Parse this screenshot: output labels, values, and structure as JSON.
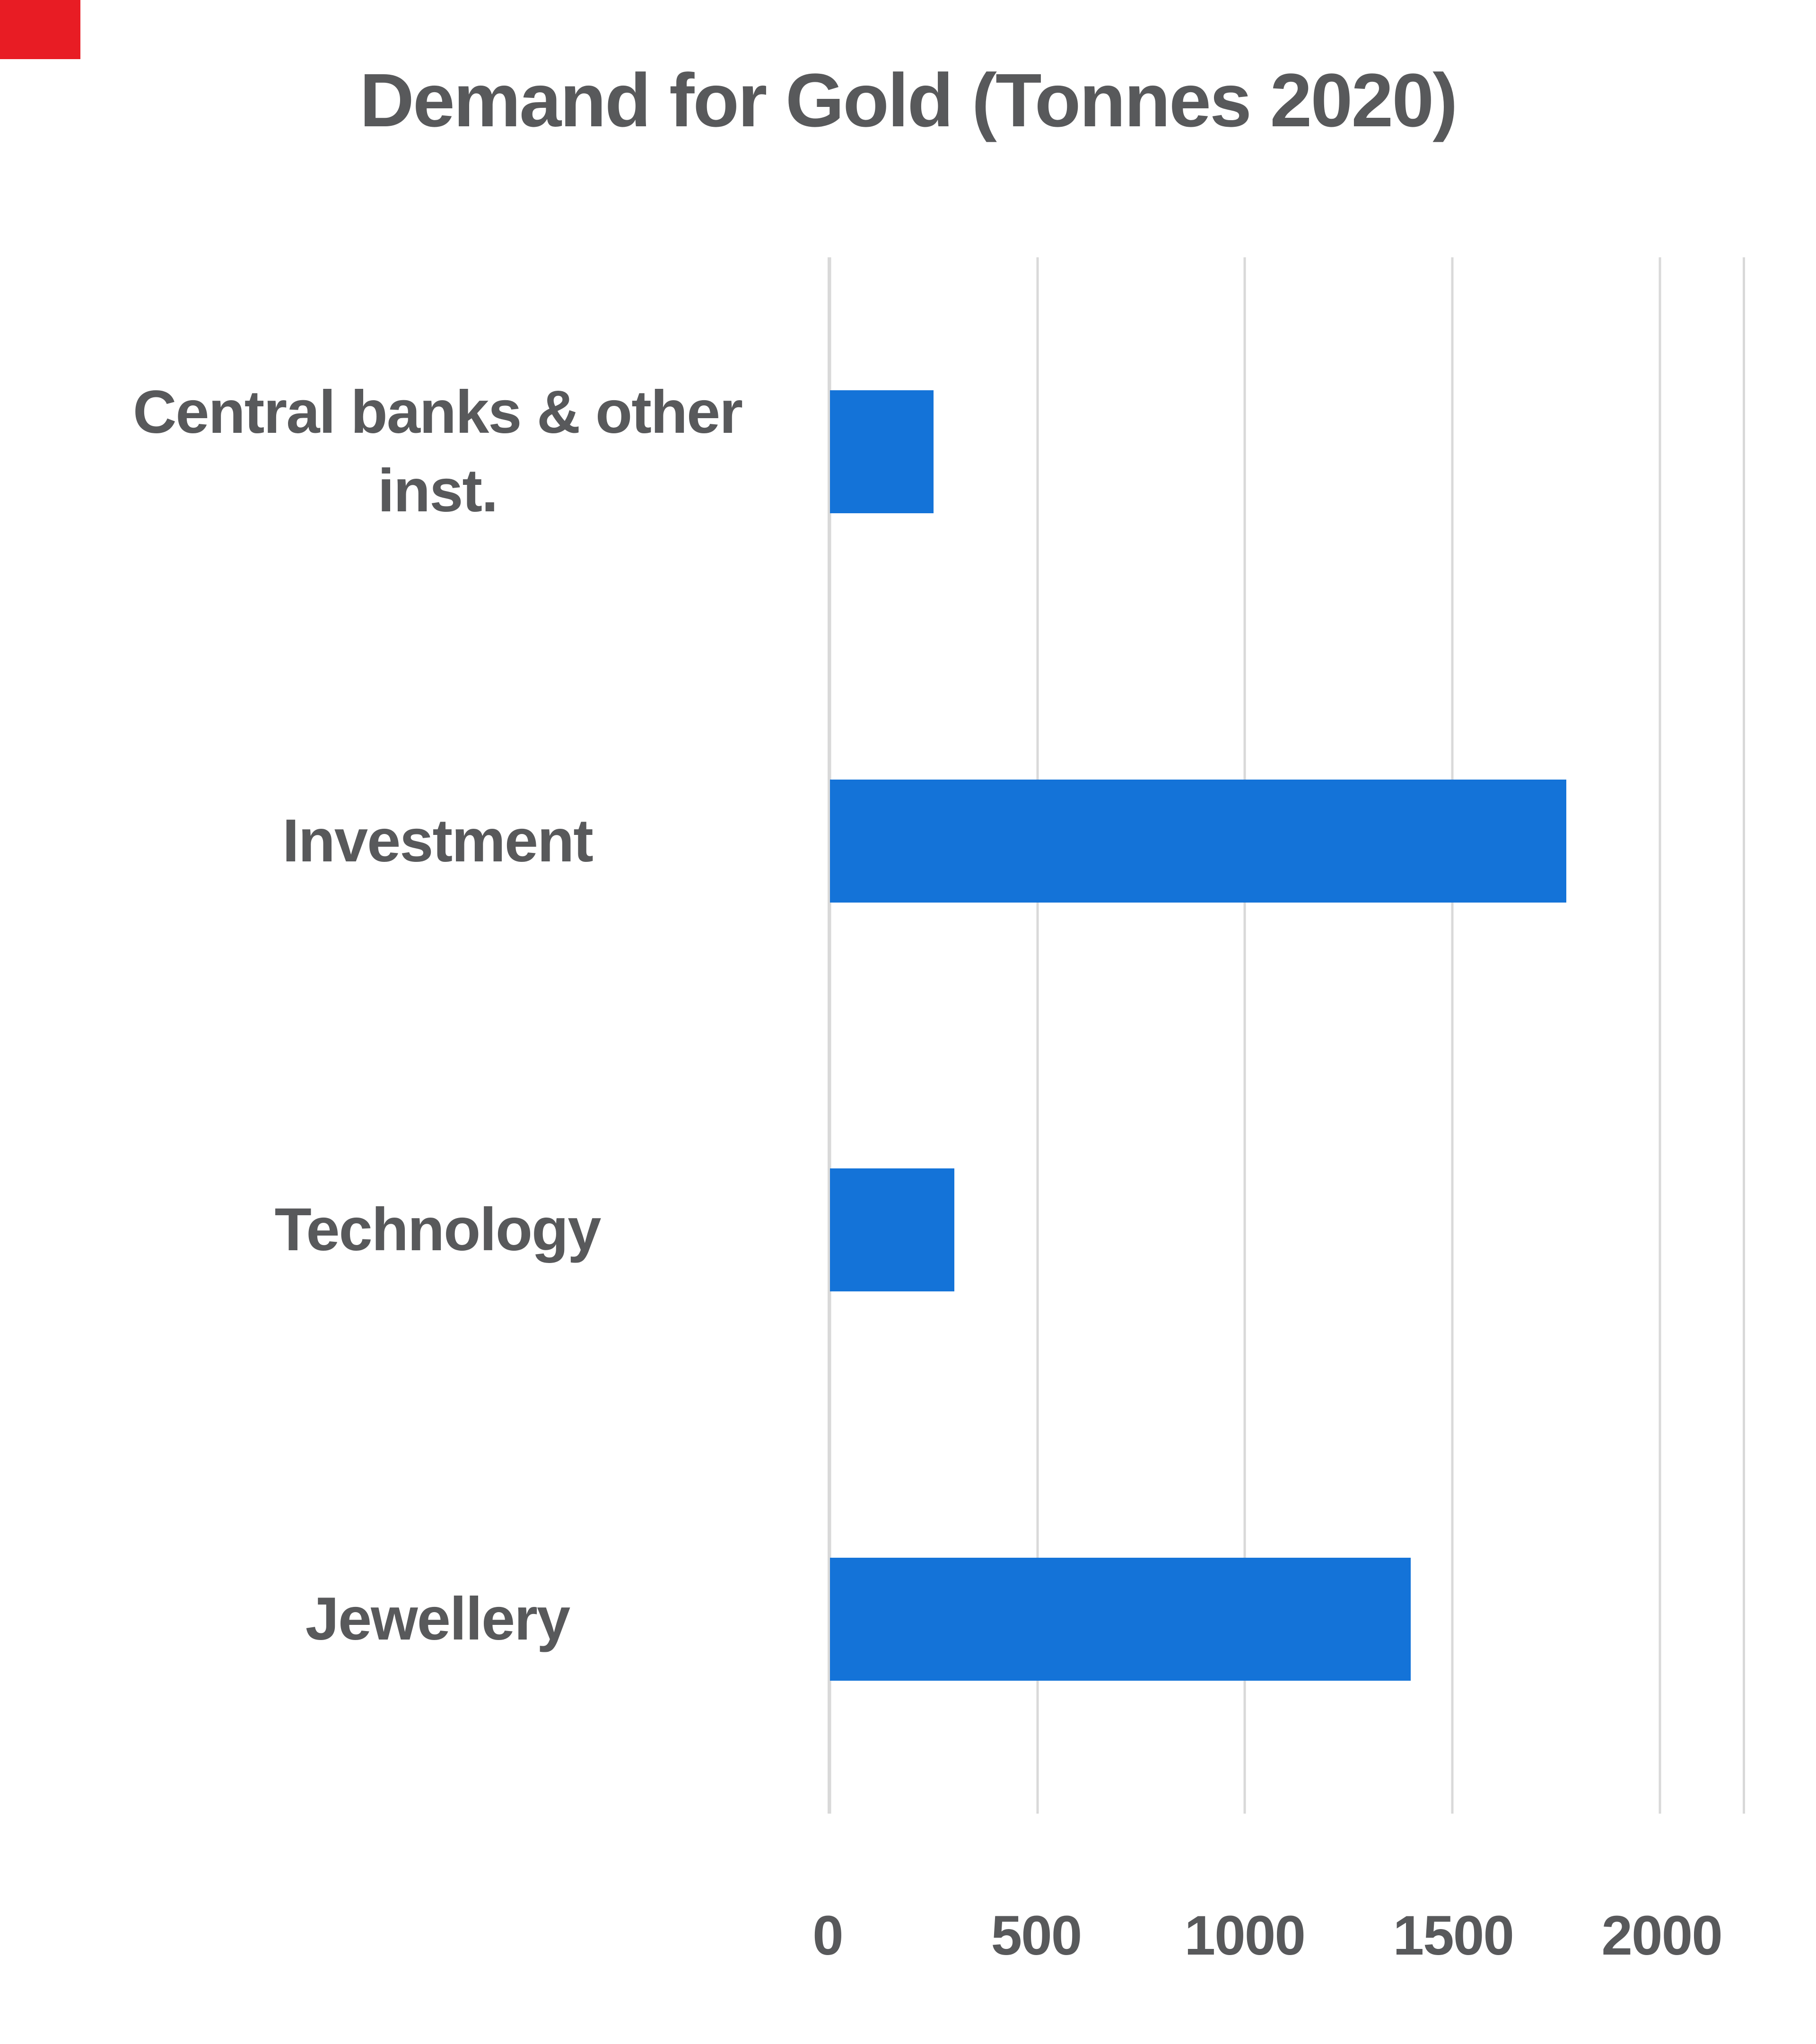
{
  "title": "Demand for Gold (Tonnes 2020)",
  "colors": {
    "bar": "#1473d8",
    "grid": "#d9d9d9",
    "text": "#58595b",
    "accent_corner": "#e81c24",
    "background": "#ffffff"
  },
  "chart_data": {
    "type": "bar",
    "orientation": "horizontal",
    "title": "Demand for Gold (Tonnes 2020)",
    "categories": [
      "Central banks & other inst.",
      "Investment",
      "Technology",
      "Jewellery"
    ],
    "values": [
      250,
      1775,
      300,
      1400
    ],
    "xlabel": "",
    "ylabel": "",
    "xlim": [
      0,
      2200
    ],
    "xmax": 2200,
    "ticks": [
      0,
      500,
      1000,
      1500,
      2000
    ],
    "tick_labels": [
      "0",
      "500",
      "1000",
      "1500",
      "2000"
    ],
    "grid": "vertical-gridlines-on",
    "legend": "none",
    "bar_color": "#1473d8"
  }
}
